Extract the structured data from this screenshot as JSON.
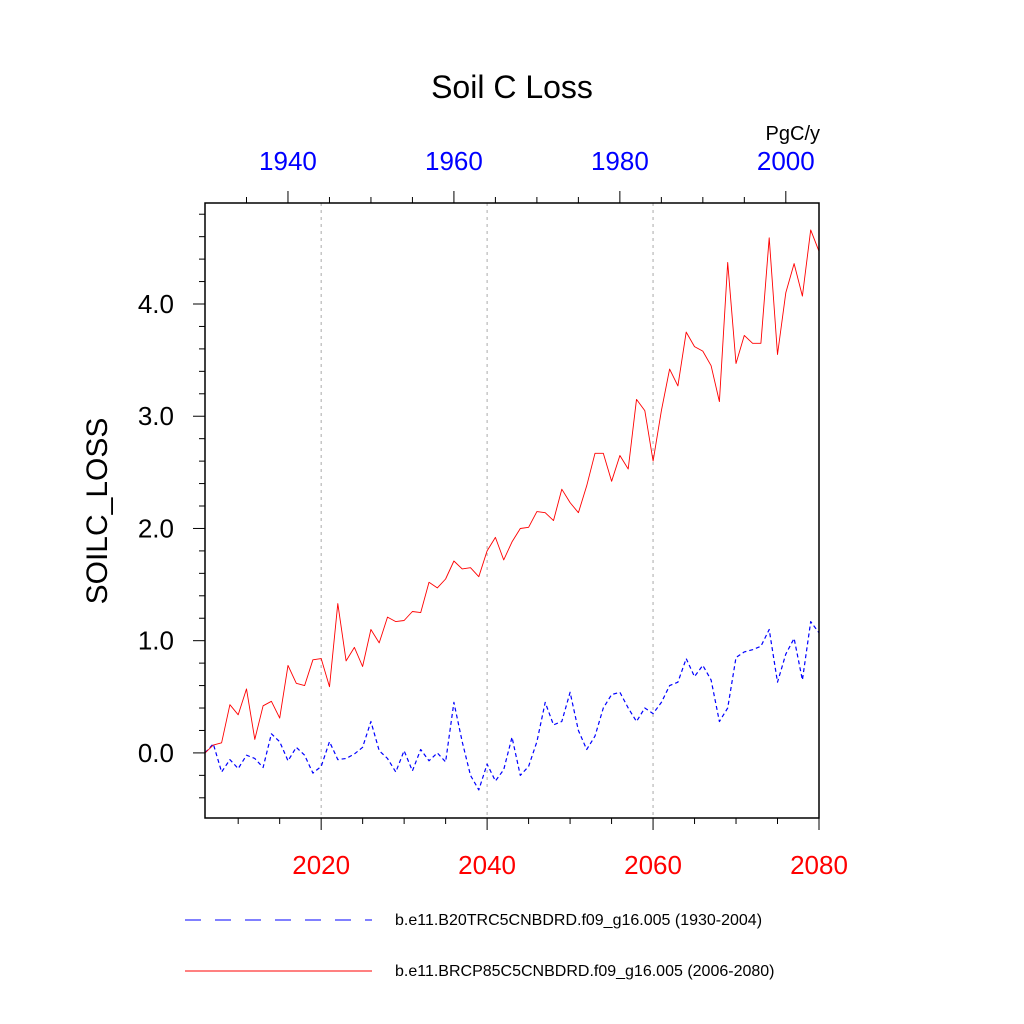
{
  "chart_data": {
    "type": "line",
    "title": "Soil C Loss",
    "units": "PgC/y",
    "ylabel": "SOILC_LOSS",
    "xlabel": "",
    "ylim": [
      -0.58,
      4.9
    ],
    "yticks": [
      0.0,
      1.0,
      2.0,
      3.0,
      4.0
    ],
    "ytick_labels": [
      "0.0",
      "1.0",
      "2.0",
      "3.0",
      "4.0"
    ],
    "grid": "vertical dotted lines at bottom major ticks",
    "bottom_axis": {
      "color": "#ff0000",
      "xlim": [
        2006,
        2080
      ],
      "ticks": [
        2020,
        2040,
        2060,
        2080
      ],
      "tick_labels": [
        "2020",
        "2040",
        "2060",
        "2080"
      ]
    },
    "top_axis": {
      "color": "#0000ff",
      "xlim": [
        1930,
        2004
      ],
      "ticks": [
        1940,
        1960,
        1980,
        2000
      ],
      "tick_labels": [
        "1940",
        "1960",
        "1980",
        "2000"
      ]
    },
    "legend_position": "bottom",
    "series": [
      {
        "name": "b.e11.B20TRC5CNBDRD.f09_g16.005 (1930-2004)",
        "color": "#0000ff",
        "style": "dashed",
        "axis": "top",
        "x": [
          1930,
          1931,
          1932,
          1933,
          1934,
          1935,
          1936,
          1937,
          1938,
          1939,
          1940,
          1941,
          1942,
          1943,
          1944,
          1945,
          1946,
          1947,
          1948,
          1949,
          1950,
          1951,
          1952,
          1953,
          1954,
          1955,
          1956,
          1957,
          1958,
          1959,
          1960,
          1961,
          1962,
          1963,
          1964,
          1965,
          1966,
          1967,
          1968,
          1969,
          1970,
          1971,
          1972,
          1973,
          1974,
          1975,
          1976,
          1977,
          1978,
          1979,
          1980,
          1981,
          1982,
          1983,
          1984,
          1985,
          1986,
          1987,
          1988,
          1989,
          1990,
          1991,
          1992,
          1993,
          1994,
          1995,
          1996,
          1997,
          1998,
          1999,
          2000,
          2001,
          2002,
          2003,
          2004
        ],
        "values": [
          0.0,
          0.08,
          -0.17,
          -0.06,
          -0.14,
          -0.02,
          -0.05,
          -0.13,
          0.17,
          0.1,
          -0.07,
          0.05,
          -0.02,
          -0.18,
          -0.12,
          0.1,
          -0.06,
          -0.05,
          -0.01,
          0.05,
          0.28,
          0.02,
          -0.05,
          -0.17,
          0.02,
          -0.16,
          0.03,
          -0.07,
          0.0,
          -0.08,
          0.45,
          0.1,
          -0.2,
          -0.33,
          -0.1,
          -0.25,
          -0.15,
          0.14,
          -0.2,
          -0.12,
          0.1,
          0.45,
          0.25,
          0.28,
          0.54,
          0.2,
          0.03,
          0.15,
          0.4,
          0.52,
          0.54,
          0.4,
          0.28,
          0.4,
          0.35,
          0.45,
          0.6,
          0.63,
          0.84,
          0.68,
          0.78,
          0.65,
          0.28,
          0.4,
          0.85,
          0.9,
          0.92,
          0.95,
          1.1,
          0.63,
          0.88,
          1.02,
          0.65,
          1.17,
          1.07
        ]
      },
      {
        "name": "b.e11.BRCP85C5CNBDRD.f09_g16.005 (2006-2080)",
        "color": "#ff0000",
        "style": "solid",
        "axis": "bottom",
        "x": [
          2006,
          2007,
          2008,
          2009,
          2010,
          2011,
          2012,
          2013,
          2014,
          2015,
          2016,
          2017,
          2018,
          2019,
          2020,
          2021,
          2022,
          2023,
          2024,
          2025,
          2026,
          2027,
          2028,
          2029,
          2030,
          2031,
          2032,
          2033,
          2034,
          2035,
          2036,
          2037,
          2038,
          2039,
          2040,
          2041,
          2042,
          2043,
          2044,
          2045,
          2046,
          2047,
          2048,
          2049,
          2050,
          2051,
          2052,
          2053,
          2054,
          2055,
          2056,
          2057,
          2058,
          2059,
          2060,
          2061,
          2062,
          2063,
          2064,
          2065,
          2066,
          2067,
          2068,
          2069,
          2070,
          2071,
          2072,
          2073,
          2074,
          2075,
          2076,
          2077,
          2078,
          2079,
          2080
        ],
        "values": [
          0.0,
          0.07,
          0.09,
          0.43,
          0.34,
          0.57,
          0.12,
          0.42,
          0.46,
          0.31,
          0.78,
          0.62,
          0.6,
          0.83,
          0.84,
          0.59,
          1.33,
          0.82,
          0.94,
          0.77,
          1.1,
          0.98,
          1.21,
          1.17,
          1.18,
          1.26,
          1.25,
          1.52,
          1.47,
          1.55,
          1.71,
          1.64,
          1.65,
          1.57,
          1.8,
          1.92,
          1.72,
          1.88,
          2.0,
          2.01,
          2.15,
          2.14,
          2.07,
          2.35,
          2.23,
          2.14,
          2.38,
          2.67,
          2.67,
          2.42,
          2.65,
          2.53,
          3.15,
          3.05,
          2.6,
          3.05,
          3.42,
          3.27,
          3.75,
          3.62,
          3.58,
          3.45,
          3.13,
          4.37,
          3.47,
          3.72,
          3.65,
          3.65,
          4.59,
          3.55,
          4.1,
          4.36,
          4.07,
          4.66,
          4.47
        ]
      }
    ]
  }
}
